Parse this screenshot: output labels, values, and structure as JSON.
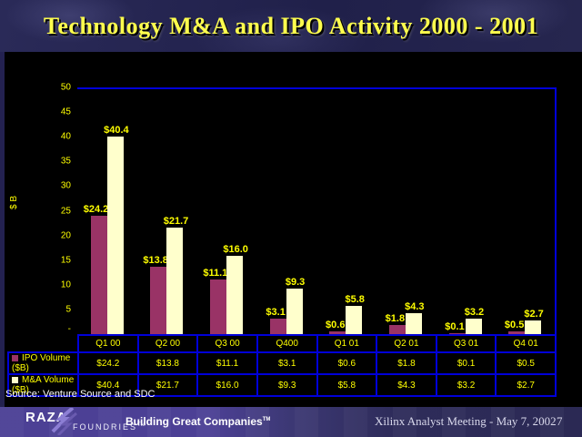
{
  "slide": {
    "title": "Technology M&A and IPO Activity 2000 - 2001",
    "source_note": "Source: Venture Source and SDC",
    "footer": {
      "logo_primary": "RAZA",
      "logo_secondary": "FOUNDRIES",
      "tm": "TM",
      "tagline": "Building Great Companies",
      "meeting_label": "Xilinx Analyst Meeting - May 7, 2002",
      "page_number": "7"
    }
  },
  "chart_data": {
    "type": "bar",
    "title": "Technology M&A and IPO Activity 2000 - 2001",
    "xlabel": "",
    "ylabel": "$ B",
    "ylim": [
      0,
      50
    ],
    "yticks": [
      50,
      45,
      40,
      35,
      30,
      25,
      20,
      15,
      10,
      5
    ],
    "zero_tick_label": "-",
    "grid": false,
    "legend_position": "data-table-left",
    "value_prefix": "$",
    "categories": [
      "Q1 00",
      "Q2 00",
      "Q3 00",
      "Q400",
      "Q1 01",
      "Q2 01",
      "Q3 01",
      "Q4 01"
    ],
    "series": [
      {
        "name": "IPO Volume ($B)",
        "color": "#993366",
        "values": [
          24.2,
          13.8,
          11.1,
          3.1,
          0.6,
          1.8,
          0.1,
          0.5
        ]
      },
      {
        "name": "M&A Volume ($B)",
        "color": "#ffffcc",
        "values": [
          40.4,
          21.7,
          16.0,
          9.3,
          5.8,
          4.3,
          3.2,
          2.7
        ]
      }
    ]
  },
  "colors": {
    "grid_blue": "#0000d9",
    "label_yellow": "#ffff00",
    "title_yellow": "#ffff4d",
    "ipo_bar": "#993366",
    "ma_bar": "#ffffcc",
    "band_purple": "#4c4095",
    "plot_background": "#000000"
  }
}
